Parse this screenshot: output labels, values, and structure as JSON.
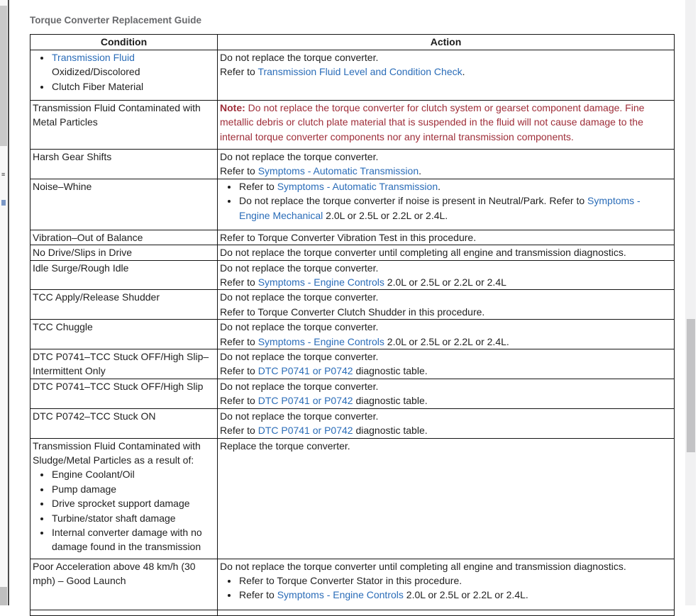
{
  "page": {
    "title": "Torque Converter Replacement Guide"
  },
  "colors": {
    "link": "#2a6cb8",
    "note": "#9e2d38",
    "title": "#696a6d",
    "border": "#141414"
  },
  "table": {
    "headers": [
      "Condition",
      "Action"
    ],
    "rows": [
      {
        "condition": [
          {
            "type": "bullets",
            "items": [
              [
                {
                  "s": "l",
                  "t": "Transmission Fluid"
                },
                {
                  "s": "p",
                  "t": " Oxidized/Discolored"
                }
              ],
              [
                {
                  "s": "p",
                  "t": "Clutch Fiber Material"
                }
              ]
            ]
          }
        ],
        "action": [
          {
            "type": "para",
            "segs": [
              {
                "s": "p",
                "t": "Do not replace the torque converter."
              }
            ]
          },
          {
            "type": "para",
            "segs": [
              {
                "s": "p",
                "t": "Refer to "
              },
              {
                "s": "l",
                "t": "Transmission Fluid Level and Condition Check"
              },
              {
                "s": "p",
                "t": "."
              }
            ]
          }
        ]
      },
      {
        "condition": [
          {
            "type": "para",
            "segs": [
              {
                "s": "p",
                "t": "Transmission Fluid Contaminated with Metal Particles"
              }
            ]
          }
        ],
        "action": [
          {
            "type": "para",
            "segs": [
              {
                "s": "nb",
                "t": "Note:"
              },
              {
                "s": "n",
                "t": " Do not replace the torque converter for clutch system or gearset component damage. Fine metallic debris or clutch plate material that is suspended in the fluid will not cause damage to the internal torque converter components nor any internal transmission components."
              }
            ]
          }
        ]
      },
      {
        "condition": [
          {
            "type": "para",
            "segs": [
              {
                "s": "p",
                "t": "Harsh Gear Shifts"
              }
            ]
          }
        ],
        "action": [
          {
            "type": "para",
            "segs": [
              {
                "s": "p",
                "t": "Do not replace the torque converter."
              }
            ]
          },
          {
            "type": "para",
            "segs": [
              {
                "s": "p",
                "t": "Refer to "
              },
              {
                "s": "l",
                "t": "Symptoms - Automatic Transmission"
              },
              {
                "s": "p",
                "t": "."
              }
            ]
          }
        ]
      },
      {
        "condition": [
          {
            "type": "para",
            "segs": [
              {
                "s": "p",
                "t": "Noise–Whine"
              }
            ]
          }
        ],
        "action": [
          {
            "type": "bullets",
            "items": [
              [
                {
                  "s": "p",
                  "t": "Refer to "
                },
                {
                  "s": "l",
                  "t": "Symptoms - Automatic Transmission"
                },
                {
                  "s": "p",
                  "t": "."
                }
              ],
              [
                {
                  "s": "p",
                  "t": "Do not replace the torque converter if noise is present in Neutral/Park. Refer to "
                },
                {
                  "s": "l",
                  "t": "Symptoms - Engine Mechanical"
                },
                {
                  "s": "p",
                  "t": " 2.0L or 2.5L or 2.2L or 2.4L."
                }
              ]
            ]
          }
        ]
      },
      {
        "condition": [
          {
            "type": "para",
            "segs": [
              {
                "s": "p",
                "t": "Vibration–Out of Balance"
              }
            ]
          }
        ],
        "action": [
          {
            "type": "para",
            "segs": [
              {
                "s": "p",
                "t": "Refer to Torque Converter Vibration Test in this procedure."
              }
            ]
          }
        ]
      },
      {
        "condition": [
          {
            "type": "para",
            "segs": [
              {
                "s": "p",
                "t": "No Drive/Slips in Drive"
              }
            ]
          }
        ],
        "action": [
          {
            "type": "para",
            "segs": [
              {
                "s": "p",
                "t": "Do not replace the torque converter until completing all engine and transmission diagnostics."
              }
            ]
          }
        ]
      },
      {
        "condition": [
          {
            "type": "para",
            "segs": [
              {
                "s": "p",
                "t": "Idle Surge/Rough Idle"
              }
            ]
          }
        ],
        "action": [
          {
            "type": "para",
            "segs": [
              {
                "s": "p",
                "t": "Do not replace the torque converter."
              }
            ]
          },
          {
            "type": "para",
            "segs": [
              {
                "s": "p",
                "t": "Refer to "
              },
              {
                "s": "l",
                "t": "Symptoms - Engine Controls"
              },
              {
                "s": "p",
                "t": " 2.0L or 2.5L or 2.2L or 2.4L"
              }
            ]
          }
        ]
      },
      {
        "condition": [
          {
            "type": "para",
            "segs": [
              {
                "s": "p",
                "t": "TCC Apply/Release Shudder"
              }
            ]
          }
        ],
        "action": [
          {
            "type": "para",
            "segs": [
              {
                "s": "p",
                "t": "Do not replace the torque converter."
              }
            ]
          },
          {
            "type": "para",
            "segs": [
              {
                "s": "p",
                "t": "Refer to Torque Converter Clutch Shudder in this procedure."
              }
            ]
          }
        ]
      },
      {
        "condition": [
          {
            "type": "para",
            "segs": [
              {
                "s": "p",
                "t": "TCC Chuggle"
              }
            ]
          }
        ],
        "action": [
          {
            "type": "para",
            "segs": [
              {
                "s": "p",
                "t": "Do not replace the torque converter."
              }
            ]
          },
          {
            "type": "para",
            "segs": [
              {
                "s": "p",
                "t": "Refer to "
              },
              {
                "s": "l",
                "t": "Symptoms - Engine Controls"
              },
              {
                "s": "p",
                "t": " 2.0L or 2.5L or 2.2L or 2.4L."
              }
            ]
          }
        ]
      },
      {
        "condition": [
          {
            "type": "para",
            "segs": [
              {
                "s": "p",
                "t": "DTC P0741–TCC Stuck OFF/High Slip–Intermittent Only"
              }
            ]
          }
        ],
        "action": [
          {
            "type": "para",
            "segs": [
              {
                "s": "p",
                "t": "Do not replace the torque converter."
              }
            ]
          },
          {
            "type": "para",
            "segs": [
              {
                "s": "p",
                "t": "Refer to "
              },
              {
                "s": "l",
                "t": "DTC P0741 or P0742"
              },
              {
                "s": "p",
                "t": " diagnostic table."
              }
            ]
          }
        ]
      },
      {
        "condition": [
          {
            "type": "para",
            "segs": [
              {
                "s": "p",
                "t": "DTC P0741–TCC Stuck OFF/High Slip"
              }
            ]
          }
        ],
        "action": [
          {
            "type": "para",
            "segs": [
              {
                "s": "p",
                "t": "Do not replace the torque converter."
              }
            ]
          },
          {
            "type": "para",
            "segs": [
              {
                "s": "p",
                "t": "Refer to "
              },
              {
                "s": "l",
                "t": "DTC P0741 or P0742"
              },
              {
                "s": "p",
                "t": " diagnostic table."
              }
            ]
          }
        ]
      },
      {
        "condition": [
          {
            "type": "para",
            "segs": [
              {
                "s": "p",
                "t": "DTC P0742–TCC Stuck ON"
              }
            ]
          }
        ],
        "action": [
          {
            "type": "para",
            "segs": [
              {
                "s": "p",
                "t": "Do not replace the torque converter."
              }
            ]
          },
          {
            "type": "para",
            "segs": [
              {
                "s": "p",
                "t": "Refer to "
              },
              {
                "s": "l",
                "t": "DTC P0741 or P0742"
              },
              {
                "s": "p",
                "t": " diagnostic table."
              }
            ]
          }
        ]
      },
      {
        "condition": [
          {
            "type": "para",
            "segs": [
              {
                "s": "p",
                "t": "Transmission Fluid Contaminated with Sludge/Metal Particles as a result of:"
              }
            ]
          },
          {
            "type": "bullets",
            "items": [
              [
                {
                  "s": "p",
                  "t": "Engine Coolant/Oil"
                }
              ],
              [
                {
                  "s": "p",
                  "t": "Pump damage"
                }
              ],
              [
                {
                  "s": "p",
                  "t": "Drive sprocket support damage"
                }
              ],
              [
                {
                  "s": "p",
                  "t": "Turbine/stator shaft damage"
                }
              ],
              [
                {
                  "s": "p",
                  "t": "Internal converter damage with no damage found in the transmission"
                }
              ]
            ]
          }
        ],
        "action": [
          {
            "type": "para",
            "segs": [
              {
                "s": "p",
                "t": "Replace the torque converter."
              }
            ]
          }
        ]
      },
      {
        "condition": [
          {
            "type": "para",
            "segs": [
              {
                "s": "p",
                "t": "Poor Acceleration above 48 km/h (30 mph) – Good Launch"
              }
            ]
          }
        ],
        "action": [
          {
            "type": "para",
            "segs": [
              {
                "s": "p",
                "t": "Do not replace the torque converter until completing all engine and transmission diagnostics."
              }
            ]
          },
          {
            "type": "bullets",
            "items": [
              [
                {
                  "s": "p",
                  "t": "Refer to Torque Converter Stator in this procedure."
                }
              ],
              [
                {
                  "s": "p",
                  "t": "Refer to "
                },
                {
                  "s": "l",
                  "t": "Symptoms - Engine Controls"
                },
                {
                  "s": "p",
                  "t": " 2.0L or 2.5L or 2.2L or 2.4L."
                }
              ]
            ]
          }
        ]
      }
    ]
  }
}
